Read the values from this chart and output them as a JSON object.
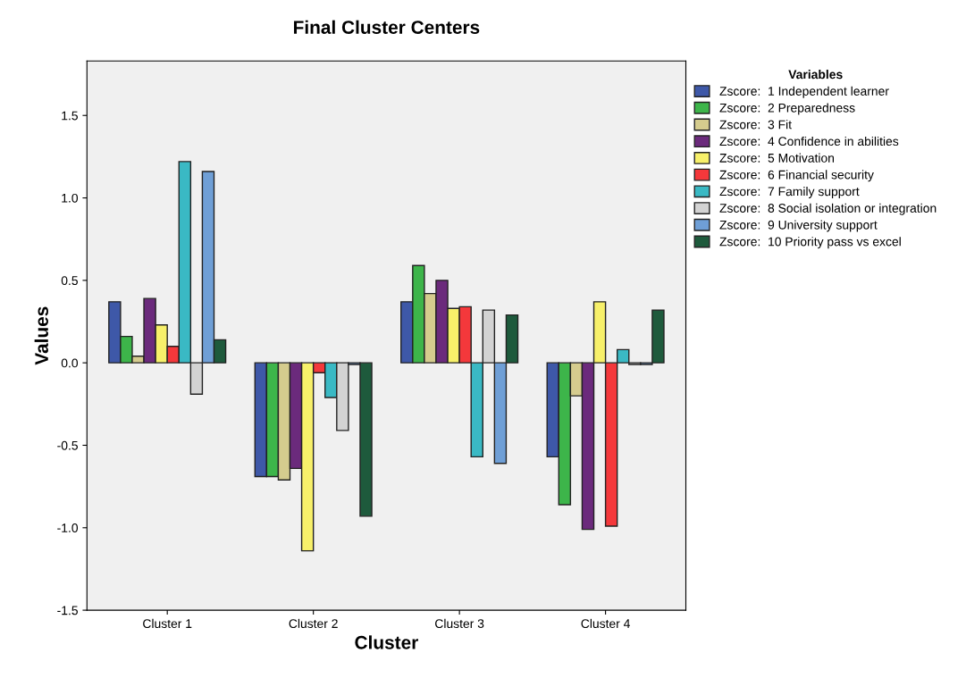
{
  "chart_data": {
    "type": "bar",
    "title": "Final Cluster Centers",
    "xlabel": "Cluster",
    "ylabel": "Values",
    "legend_title": "Variables",
    "categories": [
      "Cluster 1",
      "Cluster 2",
      "Cluster 3",
      "Cluster 4"
    ],
    "series": [
      {
        "name": "Zscore:  1 Independent learner",
        "color": "#3e58a8",
        "values": [
          0.37,
          -0.69,
          0.37,
          -0.57
        ]
      },
      {
        "name": "Zscore:  2 Preparedness",
        "color": "#3db54a",
        "values": [
          0.16,
          -0.69,
          0.59,
          -0.86
        ]
      },
      {
        "name": "Zscore:  3 Fit",
        "color": "#d5cc8e",
        "values": [
          0.04,
          -0.71,
          0.42,
          -0.2
        ]
      },
      {
        "name": "Zscore:  4 Confidence in abilities",
        "color": "#6b2a7c",
        "values": [
          0.39,
          -0.64,
          0.5,
          -1.01
        ]
      },
      {
        "name": "Zscore:  5 Motivation",
        "color": "#f7f06a",
        "values": [
          0.23,
          -1.14,
          0.33,
          0.37
        ]
      },
      {
        "name": "Zscore:  6 Financial security",
        "color": "#f4383b",
        "values": [
          0.1,
          -0.06,
          0.34,
          -0.99
        ]
      },
      {
        "name": "Zscore:  7 Family support",
        "color": "#3ab9c4",
        "values": [
          1.22,
          -0.21,
          -0.57,
          0.08
        ]
      },
      {
        "name": "Zscore:  8 Social isolation or integration",
        "color": "#d3d3d3",
        "values": [
          -0.19,
          -0.41,
          0.32,
          -0.01
        ]
      },
      {
        "name": "Zscore:  9 University support",
        "color": "#6f9fd6",
        "values": [
          1.16,
          -0.01,
          -0.61,
          -0.01
        ]
      },
      {
        "name": "Zscore:  10 Priority pass vs excel",
        "color": "#1e5a3c",
        "values": [
          0.14,
          -0.93,
          0.29,
          0.32
        ]
      }
    ],
    "ylim": [
      -1.5,
      1.83
    ],
    "yticks": [
      {
        "value": -1.5,
        "label": "-1.5"
      },
      {
        "value": -1.0,
        "label": "-1.0"
      },
      {
        "value": -0.5,
        "label": "-0.5"
      },
      {
        "value": 0.0,
        "label": "0.0"
      },
      {
        "value": 0.5,
        "label": "0.5"
      },
      {
        "value": 1.0,
        "label": "1.0"
      },
      {
        "value": 1.5,
        "label": "1.5"
      }
    ],
    "grid": false,
    "legend": "top right"
  }
}
